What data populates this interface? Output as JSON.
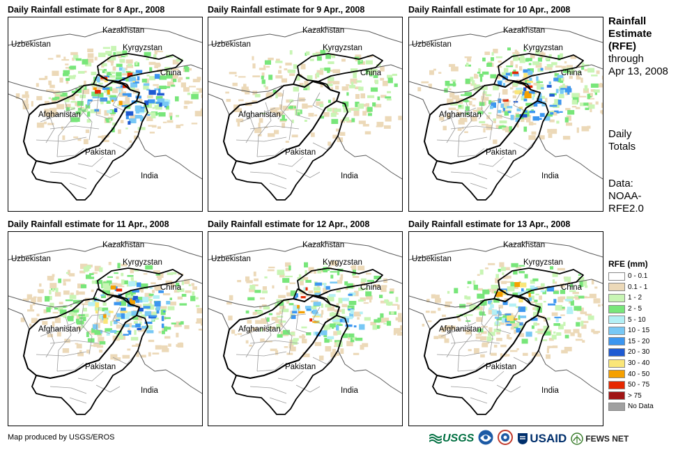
{
  "panels": [
    {
      "title": "Daily Rainfall estimate for 8 Apr., 2008",
      "seed": 8,
      "intensity": 3
    },
    {
      "title": "Daily Rainfall estimate for 9 Apr., 2008",
      "seed": 9,
      "intensity": 1
    },
    {
      "title": "Daily Rainfall estimate for 10 Apr., 2008",
      "seed": 10,
      "intensity": 3
    },
    {
      "title": "Daily Rainfall estimate for 11 Apr., 2008",
      "seed": 11,
      "intensity": 3
    },
    {
      "title": "Daily Rainfall estimate for 12 Apr., 2008",
      "seed": 12,
      "intensity": 2
    },
    {
      "title": "Daily Rainfall estimate for 13 Apr., 2008",
      "seed": 13,
      "intensity": 2
    }
  ],
  "country_labels": {
    "kazakhstan": "Kazakhstan",
    "uzbekistan": "Uzbekistan",
    "kyrgyzstan": "Kyrgyzstan",
    "china": "China",
    "afghanistan": "Afghanistan",
    "pakistan": "Pakistan",
    "india": "India"
  },
  "sidebar": {
    "title_line1": "Rainfall",
    "title_line2": "Estimate",
    "title_line3": "(RFE)",
    "through": "through",
    "date": "Apr 13, 2008",
    "daily1": "Daily",
    "daily2": "Totals",
    "data1": "Data:",
    "data2": "NOAA-",
    "data3": "RFE2.0"
  },
  "legend": {
    "title": "RFE (mm)",
    "items": [
      {
        "label": "0 - 0.1",
        "color": "#ffffff"
      },
      {
        "label": "0.1 - 1",
        "color": "#ecd9b8"
      },
      {
        "label": "1 - 2",
        "color": "#c8f5b4"
      },
      {
        "label": "2 - 5",
        "color": "#78e67a"
      },
      {
        "label": "5 - 10",
        "color": "#b4f0f5"
      },
      {
        "label": "10 - 15",
        "color": "#78c8f5"
      },
      {
        "label": "15 - 20",
        "color": "#3c96f0"
      },
      {
        "label": "20 - 30",
        "color": "#1e5ad2"
      },
      {
        "label": "30 - 40",
        "color": "#fae678"
      },
      {
        "label": "40 - 50",
        "color": "#f5a000"
      },
      {
        "label": "50 - 75",
        "color": "#e62800"
      },
      {
        "label": "> 75",
        "color": "#a01414"
      },
      {
        "label": "No Data",
        "color": "#a0a0a0"
      }
    ]
  },
  "credit": "Map produced by USGS/EROS",
  "logos": {
    "usgs": "USGS",
    "usaid": "USAID",
    "fewsnet": "FEWS NET"
  }
}
